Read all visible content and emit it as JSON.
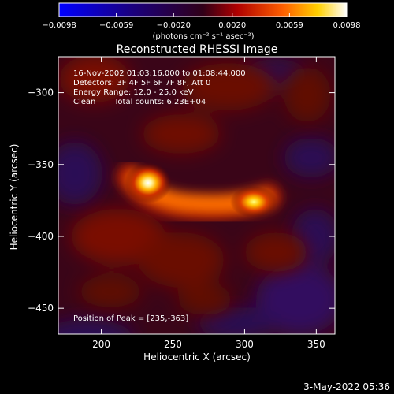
{
  "chart_data": {
    "type": "heatmap",
    "title": "Reconstructed RHESSI Image",
    "xlabel": "Heliocentric X (arcsec)",
    "ylabel": "Heliocentric Y (arcsec)",
    "xlim": [
      170,
      363
    ],
    "ylim": [
      -468,
      -275
    ],
    "x_ticks": [
      200,
      250,
      300,
      350
    ],
    "y_ticks": [
      -300,
      -350,
      -400,
      -450
    ],
    "colorbar": {
      "min": -0.0098,
      "max": 0.0098,
      "ticks": [
        "-0.0098",
        "-0.0059",
        "-0.0020",
        "0.0020",
        "0.0059",
        "0.0098"
      ],
      "tick_values": [
        -0.0098,
        -0.0059,
        -0.002,
        0.002,
        0.0059,
        0.0098
      ],
      "label": "(photons cm⁻² s⁻¹ asec⁻²)"
    },
    "annotations": {
      "time": "16-Nov-2002 01:03:16.000 to 01:08:44.000",
      "detectors": "Detectors: 3F 4F 5F 6F 7F 8F, Att 0",
      "energy": "Energy Range: 12.0 - 25.0 keV",
      "method": "Clean",
      "counts": "Total counts: 6.23E+04",
      "peak": "Position of Peak = [235,-363]"
    },
    "sources": [
      {
        "x": 233,
        "y": -362,
        "value": 0.0098
      },
      {
        "x": 300,
        "y": -377,
        "value": 0.0065
      }
    ]
  },
  "footer": {
    "date": "3-May-2022 05:36"
  }
}
